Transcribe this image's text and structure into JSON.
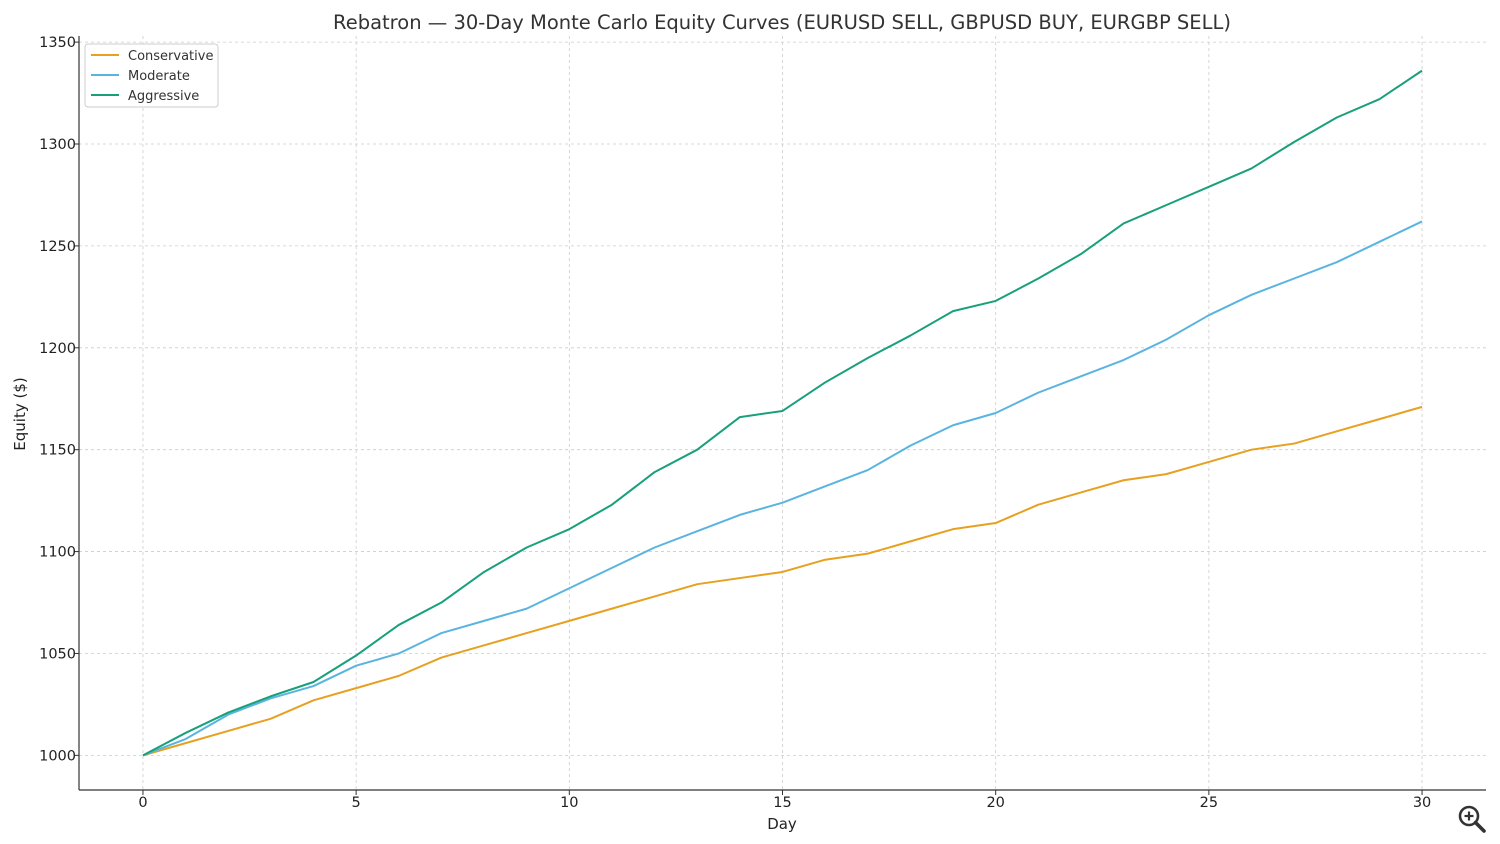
{
  "chart_data": {
    "type": "line",
    "title": "Rebatron — 30-Day Monte Carlo Equity Curves (EURUSD SELL, GBPUSD BUY, EURGBP SELL)",
    "xlabel": "Day",
    "ylabel": "Equity ($)",
    "xlim": [
      -1.5,
      31.5
    ],
    "ylim": [
      983,
      1353
    ],
    "xticks": [
      0,
      5,
      10,
      15,
      20,
      25,
      30
    ],
    "yticks": [
      1000,
      1050,
      1100,
      1150,
      1200,
      1250,
      1300,
      1350
    ],
    "grid": true,
    "legend_position": "upper-left",
    "x": [
      0,
      1,
      2,
      3,
      4,
      5,
      6,
      7,
      8,
      9,
      10,
      11,
      12,
      13,
      14,
      15,
      16,
      17,
      18,
      19,
      20,
      21,
      22,
      23,
      24,
      25,
      26,
      27,
      28,
      29,
      30
    ],
    "series": [
      {
        "name": "Conservative",
        "color": "#e8a020",
        "values": [
          1000,
          1006,
          1012,
          1018,
          1027,
          1033,
          1039,
          1048,
          1054,
          1060,
          1066,
          1072,
          1078,
          1084,
          1087,
          1090,
          1096,
          1099,
          1105,
          1111,
          1114,
          1123,
          1129,
          1135,
          1138,
          1144,
          1150,
          1153,
          1159,
          1165,
          1171
        ]
      },
      {
        "name": "Moderate",
        "color": "#5ab4e0",
        "values": [
          1000,
          1008,
          1020,
          1028,
          1034,
          1044,
          1050,
          1060,
          1066,
          1072,
          1082,
          1092,
          1102,
          1110,
          1118,
          1124,
          1132,
          1140,
          1152,
          1162,
          1168,
          1178,
          1186,
          1194,
          1204,
          1216,
          1226,
          1234,
          1242,
          1252,
          1262
        ]
      },
      {
        "name": "Aggressive",
        "color": "#18a07a",
        "values": [
          1000,
          1011,
          1021,
          1029,
          1036,
          1049,
          1064,
          1075,
          1090,
          1102,
          1111,
          1123,
          1139,
          1150,
          1166,
          1169,
          1183,
          1195,
          1206,
          1218,
          1223,
          1234,
          1246,
          1261,
          1270,
          1279,
          1288,
          1301,
          1313,
          1322,
          1336
        ]
      }
    ]
  },
  "toolbar": {
    "zoom_icon": "magnifier-zoom-icon"
  }
}
